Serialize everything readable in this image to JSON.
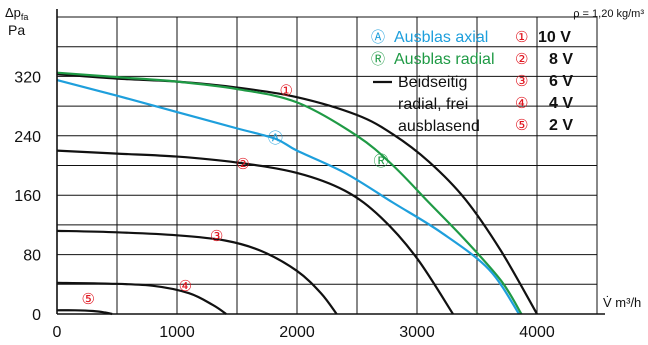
{
  "chart_data": {
    "type": "line",
    "ylabel_line1": "Δp",
    "ylabel_sub": "fa",
    "ylabel_line2": "Pa",
    "xlabel": "V̇ m³/h",
    "density_note": "ρ = 1,20 kg/m³",
    "xlim": [
      0,
      4500
    ],
    "ylim": [
      0,
      400
    ],
    "x_ticks": [
      0,
      1000,
      2000,
      3000,
      4000
    ],
    "y_ticks": [
      0,
      80,
      160,
      240,
      320
    ],
    "legend_series": [
      {
        "marker": "Ⓐ",
        "label": "Ausblas axial",
        "color": "#1e9fdc"
      },
      {
        "marker": "Ⓡ",
        "label": "Ausblas radial",
        "color": "#1f9a45"
      },
      {
        "marker": "—",
        "label_lines": [
          "Beidseitig",
          "radial, frei",
          "ausblasend"
        ],
        "color": "#111111"
      }
    ],
    "legend_voltages": [
      {
        "marker": "①",
        "label": "10 V"
      },
      {
        "marker": "②",
        "label": "8 V"
      },
      {
        "marker": "③",
        "label": "6 V"
      },
      {
        "marker": "④",
        "label": "4 V"
      },
      {
        "marker": "⑤",
        "label": "2 V"
      }
    ],
    "colors": {
      "axial": "#1e9fdc",
      "radial": "#1f9a45",
      "black": "#111111",
      "marker_red": "#e0141e"
    },
    "series": [
      {
        "id": "black-10v",
        "color": "#111111",
        "x": [
          0,
          500,
          1000,
          1500,
          2000,
          2500,
          2800,
          3100,
          3400,
          3700,
          4000
        ],
        "y": [
          323,
          317,
          313,
          305,
          292,
          268,
          242,
          205,
          155,
          85,
          0
        ]
      },
      {
        "id": "radial",
        "color": "#1f9a45",
        "x": [
          0,
          500,
          1000,
          1500,
          2000,
          2500,
          2800,
          3100,
          3400,
          3700,
          3870
        ],
        "y": [
          325,
          319,
          313,
          303,
          285,
          240,
          200,
          150,
          100,
          45,
          0
        ]
      },
      {
        "id": "axial",
        "color": "#1e9fdc",
        "x": [
          0,
          500,
          1000,
          1500,
          1820,
          2000,
          2400,
          2800,
          3200,
          3600,
          3850
        ],
        "y": [
          315,
          294,
          272,
          250,
          236,
          220,
          190,
          150,
          110,
          60,
          0
        ]
      },
      {
        "id": "black-8v",
        "color": "#111111",
        "x": [
          0,
          500,
          1000,
          1500,
          2000,
          2400,
          2700,
          3000,
          3300
        ],
        "y": [
          220,
          216,
          212,
          204,
          190,
          166,
          130,
          75,
          0
        ]
      },
      {
        "id": "black-6v",
        "color": "#111111",
        "x": [
          0,
          500,
          1000,
          1400,
          1700,
          2000,
          2200,
          2330
        ],
        "y": [
          112,
          110,
          106,
          99,
          85,
          58,
          28,
          0
        ]
      },
      {
        "id": "black-4v",
        "color": "#111111",
        "x": [
          0,
          400,
          800,
          1100,
          1300,
          1410
        ],
        "y": [
          42,
          41,
          38,
          28,
          12,
          0
        ]
      },
      {
        "id": "black-2v",
        "color": "#111111",
        "x": [
          0,
          150,
          300,
          400,
          460
        ],
        "y": [
          5,
          5,
          4,
          2,
          0
        ]
      }
    ],
    "curve_markers": [
      {
        "symbol": "①",
        "x": 1910,
        "y": 301,
        "color": "#e0141e"
      },
      {
        "symbol": "②",
        "x": 1550,
        "y": 202,
        "color": "#e0141e"
      },
      {
        "symbol": "③",
        "x": 1330,
        "y": 105,
        "color": "#e0141e"
      },
      {
        "symbol": "④",
        "x": 1070,
        "y": 38,
        "color": "#e0141e"
      },
      {
        "symbol": "⑤",
        "x": 260,
        "y": 20,
        "color": "#e0141e"
      },
      {
        "symbol": "Ⓐ",
        "x": 1820,
        "y": 237,
        "color": "#1e9fdc"
      },
      {
        "symbol": "Ⓡ",
        "x": 2700,
        "y": 206,
        "color": "#1f9a45"
      }
    ]
  }
}
